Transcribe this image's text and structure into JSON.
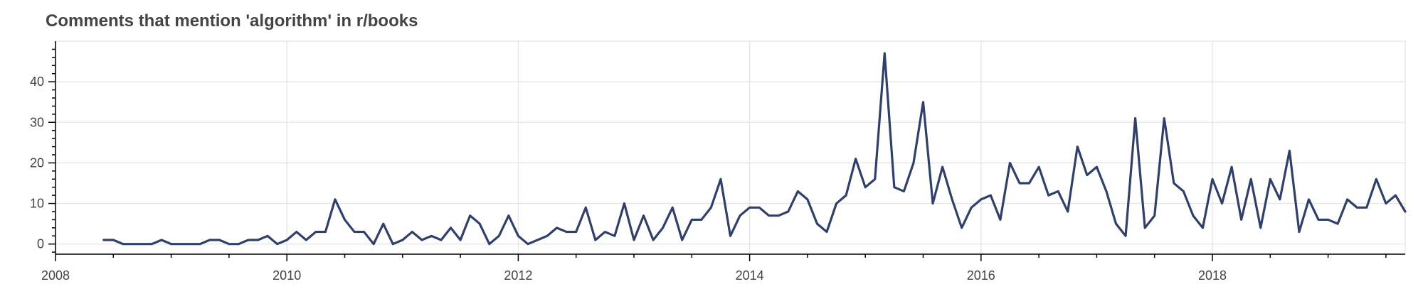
{
  "title": "Comments that mention 'algorithm' in r/books",
  "colors": {
    "line": "#30406a",
    "grid": "#e5e5e5",
    "axis": "#000000",
    "text": "#444444"
  },
  "chart_data": {
    "type": "line",
    "title": "Comments that mention 'algorithm' in r/books",
    "xlabel": "",
    "ylabel": "",
    "xlim": [
      "2008-01",
      "2019-09"
    ],
    "ylim": [
      -2.5,
      50
    ],
    "x_ticks": [
      "2008",
      "2010",
      "2012",
      "2014",
      "2016",
      "2018"
    ],
    "y_ticks": [
      0,
      10,
      20,
      30,
      40
    ],
    "grid": true,
    "legend": "none",
    "x_start": "2008-06",
    "x_step": "month",
    "series": [
      {
        "values": [
          1,
          1,
          0,
          0,
          0,
          0,
          1,
          0,
          0,
          0,
          0,
          1,
          1,
          0,
          0,
          1,
          1,
          2,
          0,
          1,
          3,
          1,
          3,
          3,
          11,
          6,
          3,
          3,
          0,
          5,
          0,
          1,
          3,
          1,
          2,
          1,
          4,
          1,
          7,
          5,
          0,
          2,
          7,
          2,
          0,
          1,
          2,
          4,
          3,
          3,
          9,
          1,
          3,
          2,
          10,
          1,
          7,
          1,
          4,
          9,
          1,
          6,
          6,
          9,
          16,
          2,
          7,
          9,
          9,
          7,
          7,
          8,
          13,
          11,
          5,
          3,
          10,
          12,
          21,
          14,
          16,
          47,
          14,
          13,
          20,
          35,
          10,
          19,
          11,
          4,
          9,
          11,
          12,
          6,
          20,
          15,
          15,
          19,
          12,
          13,
          8,
          24,
          17,
          19,
          13,
          5,
          2,
          31,
          4,
          7,
          31,
          15,
          13,
          7,
          4,
          16,
          10,
          19,
          6,
          16,
          4,
          16,
          11,
          23,
          3,
          11,
          6,
          6,
          5,
          11,
          9,
          9,
          16,
          10,
          12,
          8
        ]
      }
    ]
  }
}
